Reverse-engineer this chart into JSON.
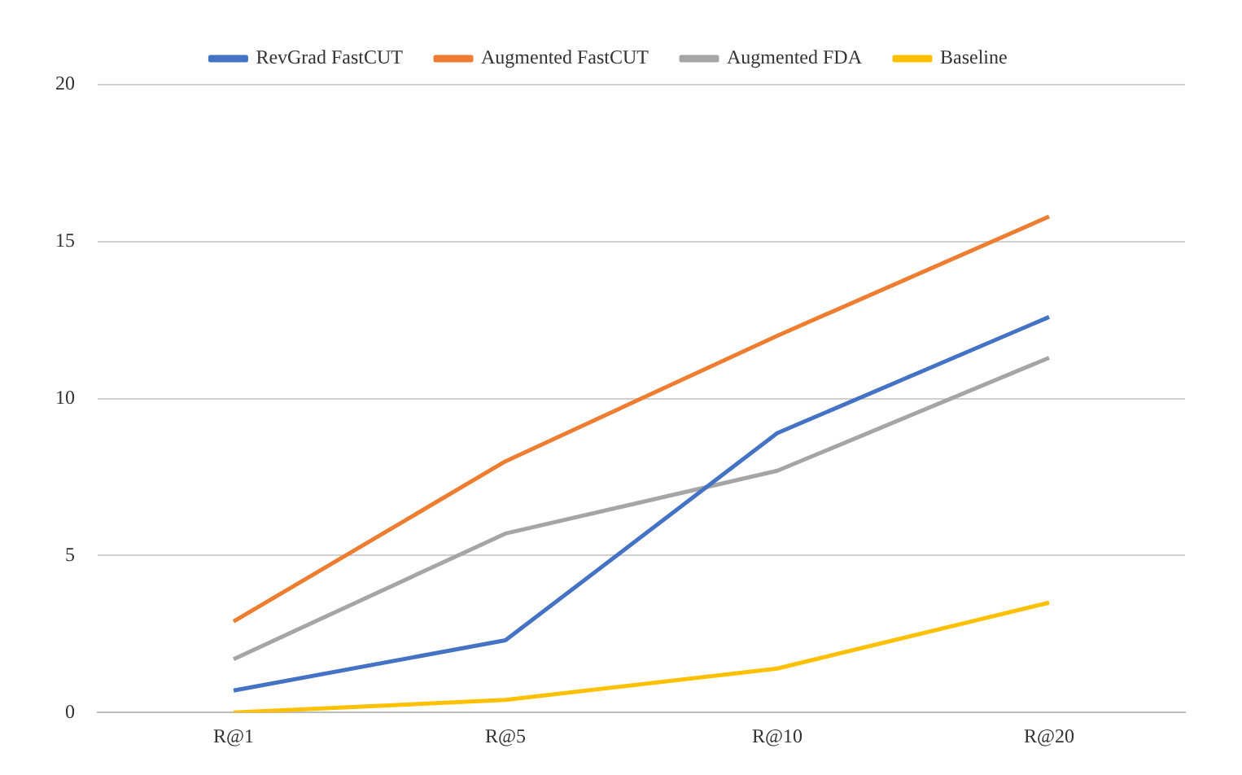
{
  "chart_data": {
    "type": "line",
    "categories": [
      "R@1",
      "R@5",
      "R@10",
      "R@20"
    ],
    "series": [
      {
        "name": "RevGrad FastCUT",
        "color": "#4472c4",
        "values": [
          0.7,
          2.3,
          8.9,
          12.6
        ]
      },
      {
        "name": "Augmented FastCUT",
        "color": "#ed7d31",
        "values": [
          2.9,
          8.0,
          12.0,
          15.8
        ]
      },
      {
        "name": "Augmented FDA",
        "color": "#a5a5a5",
        "values": [
          1.7,
          5.7,
          7.7,
          11.3
        ]
      },
      {
        "name": "Baseline",
        "color": "#ffc000",
        "values": [
          0,
          0.4,
          1.4,
          3.5
        ]
      }
    ],
    "ylim": [
      0,
      20
    ],
    "yticks": [
      0,
      5,
      10,
      15,
      20
    ],
    "grid": "y",
    "legend": "top",
    "marker": "none",
    "line_style": "solid"
  }
}
